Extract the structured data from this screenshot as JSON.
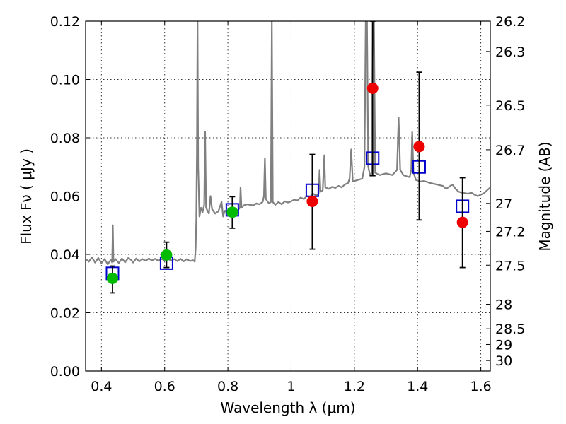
{
  "chart_data": {
    "type": "scatter",
    "xlabel": "Wavelength  λ (μm)",
    "ylabel": "Flux  Fν  ( μJy )",
    "y2label": "Magnitude (AB)",
    "xlim": [
      0.35,
      1.63
    ],
    "ylim": [
      0.0,
      0.12
    ],
    "grid": true,
    "x_ticks": [
      {
        "value": 0.4,
        "label": "0.4"
      },
      {
        "value": 0.6,
        "label": "0.6"
      },
      {
        "value": 0.8,
        "label": "0.8"
      },
      {
        "value": 1.0,
        "label": "1"
      },
      {
        "value": 1.2,
        "label": "1.2"
      },
      {
        "value": 1.4,
        "label": "1.4"
      },
      {
        "value": 1.6,
        "label": "1.6"
      }
    ],
    "y_ticks": [
      {
        "value": 0.0,
        "label": "0.00"
      },
      {
        "value": 0.02,
        "label": "0.02"
      },
      {
        "value": 0.04,
        "label": "0.04"
      },
      {
        "value": 0.06,
        "label": "0.06"
      },
      {
        "value": 0.08,
        "label": "0.08"
      },
      {
        "value": 0.1,
        "label": "0.10"
      },
      {
        "value": 0.12,
        "label": "0.12"
      }
    ],
    "y2_ticks": [
      {
        "flux": 0.12,
        "label": "26.2"
      },
      {
        "flux": 0.1096,
        "label": "26.3"
      },
      {
        "flux": 0.0912,
        "label": "26.5"
      },
      {
        "flux": 0.0759,
        "label": "26.7"
      },
      {
        "flux": 0.0575,
        "label": "27"
      },
      {
        "flux": 0.0479,
        "label": "27.2"
      },
      {
        "flux": 0.0363,
        "label": "27.5"
      },
      {
        "flux": 0.0229,
        "label": "28"
      },
      {
        "flux": 0.0145,
        "label": "28.5"
      },
      {
        "flux": 0.0091,
        "label": "29"
      },
      {
        "flux": 0.0036,
        "label": "30"
      }
    ],
    "colors": {
      "spectrum": "#808080",
      "model": "#0000cc",
      "optical": "#00bb00",
      "nir": "#ee0000",
      "errorbar": "#000000"
    },
    "model_photometry": [
      {
        "x": 0.435,
        "y": 0.0335
      },
      {
        "x": 0.606,
        "y": 0.037
      },
      {
        "x": 0.814,
        "y": 0.0553
      },
      {
        "x": 1.067,
        "y": 0.062
      },
      {
        "x": 1.258,
        "y": 0.073
      },
      {
        "x": 1.405,
        "y": 0.07
      },
      {
        "x": 1.542,
        "y": 0.0565
      }
    ],
    "observed_optical": [
      {
        "x": 0.435,
        "y": 0.0318,
        "yerr": [
          0.0268,
          0.036
        ]
      },
      {
        "x": 0.606,
        "y": 0.0398,
        "yerr": [
          0.0355,
          0.0442
        ]
      },
      {
        "x": 0.814,
        "y": 0.0545,
        "yerr": [
          0.049,
          0.0598
        ]
      }
    ],
    "observed_nir": [
      {
        "x": 1.067,
        "y": 0.0582,
        "yerr": [
          0.0418,
          0.0743
        ]
      },
      {
        "x": 1.258,
        "y": 0.097,
        "yerr": [
          0.067,
          0.12
        ]
      },
      {
        "x": 1.405,
        "y": 0.077,
        "yerr": [
          0.0518,
          0.1025
        ]
      },
      {
        "x": 1.542,
        "y": 0.051,
        "yerr": [
          0.0355,
          0.0663
        ]
      }
    ],
    "model_spectrum": [
      [
        0.35,
        0.0385
      ],
      [
        0.36,
        0.0375
      ],
      [
        0.37,
        0.039
      ],
      [
        0.38,
        0.0372
      ],
      [
        0.39,
        0.0388
      ],
      [
        0.4,
        0.037
      ],
      [
        0.41,
        0.0384
      ],
      [
        0.42,
        0.0366
      ],
      [
        0.43,
        0.0382
      ],
      [
        0.434,
        0.0372
      ],
      [
        0.436,
        0.05
      ],
      [
        0.438,
        0.0375
      ],
      [
        0.445,
        0.0384
      ],
      [
        0.455,
        0.037
      ],
      [
        0.465,
        0.0386
      ],
      [
        0.475,
        0.0373
      ],
      [
        0.485,
        0.0388
      ],
      [
        0.495,
        0.038
      ],
      [
        0.5,
        0.0372
      ],
      [
        0.51,
        0.0386
      ],
      [
        0.52,
        0.0376
      ],
      [
        0.53,
        0.0384
      ],
      [
        0.54,
        0.0378
      ],
      [
        0.55,
        0.0386
      ],
      [
        0.56,
        0.0379
      ],
      [
        0.57,
        0.0385
      ],
      [
        0.58,
        0.0378
      ],
      [
        0.59,
        0.0384
      ],
      [
        0.6,
        0.038
      ],
      [
        0.61,
        0.0386
      ],
      [
        0.62,
        0.0378
      ],
      [
        0.63,
        0.0384
      ],
      [
        0.64,
        0.0377
      ],
      [
        0.65,
        0.0385
      ],
      [
        0.66,
        0.0376
      ],
      [
        0.67,
        0.0384
      ],
      [
        0.68,
        0.0377
      ],
      [
        0.69,
        0.038
      ],
      [
        0.695,
        0.0375
      ],
      [
        0.698,
        0.042
      ],
      [
        0.7,
        0.052
      ],
      [
        0.702,
        0.075
      ],
      [
        0.704,
        0.12
      ],
      [
        0.706,
        0.07
      ],
      [
        0.71,
        0.053
      ],
      [
        0.715,
        0.056
      ],
      [
        0.72,
        0.0545
      ],
      [
        0.725,
        0.057
      ],
      [
        0.728,
        0.082
      ],
      [
        0.731,
        0.056
      ],
      [
        0.74,
        0.054
      ],
      [
        0.745,
        0.06
      ],
      [
        0.75,
        0.0555
      ],
      [
        0.76,
        0.054
      ],
      [
        0.77,
        0.0548
      ],
      [
        0.78,
        0.058
      ],
      [
        0.785,
        0.053
      ],
      [
        0.79,
        0.055
      ],
      [
        0.8,
        0.054
      ],
      [
        0.81,
        0.0548
      ],
      [
        0.82,
        0.0558
      ],
      [
        0.83,
        0.055
      ],
      [
        0.838,
        0.056
      ],
      [
        0.84,
        0.063
      ],
      [
        0.843,
        0.056
      ],
      [
        0.85,
        0.0568
      ],
      [
        0.86,
        0.0572
      ],
      [
        0.87,
        0.057
      ],
      [
        0.88,
        0.0568
      ],
      [
        0.89,
        0.0575
      ],
      [
        0.9,
        0.0572
      ],
      [
        0.91,
        0.058
      ],
      [
        0.914,
        0.06
      ],
      [
        0.917,
        0.073
      ],
      [
        0.92,
        0.059
      ],
      [
        0.925,
        0.0582
      ],
      [
        0.93,
        0.0575
      ],
      [
        0.936,
        0.058
      ],
      [
        0.939,
        0.12
      ],
      [
        0.942,
        0.058
      ],
      [
        0.95,
        0.057
      ],
      [
        0.96,
        0.058
      ],
      [
        0.97,
        0.0572
      ],
      [
        0.98,
        0.0582
      ],
      [
        0.99,
        0.0578
      ],
      [
        1.0,
        0.0582
      ],
      [
        1.01,
        0.0588
      ],
      [
        1.02,
        0.0585
      ],
      [
        1.03,
        0.0595
      ],
      [
        1.04,
        0.059
      ],
      [
        1.05,
        0.06
      ],
      [
        1.06,
        0.0598
      ],
      [
        1.07,
        0.0608
      ],
      [
        1.08,
        0.0602
      ],
      [
        1.087,
        0.061
      ],
      [
        1.09,
        0.069
      ],
      [
        1.093,
        0.0615
      ],
      [
        1.1,
        0.062
      ],
      [
        1.105,
        0.074
      ],
      [
        1.108,
        0.063
      ],
      [
        1.12,
        0.0625
      ],
      [
        1.13,
        0.0632
      ],
      [
        1.14,
        0.0628
      ],
      [
        1.15,
        0.0635
      ],
      [
        1.16,
        0.063
      ],
      [
        1.17,
        0.064
      ],
      [
        1.18,
        0.0645
      ],
      [
        1.185,
        0.066
      ],
      [
        1.19,
        0.076
      ],
      [
        1.195,
        0.065
      ],
      [
        1.21,
        0.0655
      ],
      [
        1.225,
        0.066
      ],
      [
        1.232,
        0.07
      ],
      [
        1.236,
        0.12
      ],
      [
        1.24,
        0.12
      ],
      [
        1.244,
        0.07
      ],
      [
        1.25,
        0.067
      ],
      [
        1.255,
        0.068
      ],
      [
        1.258,
        0.12
      ],
      [
        1.262,
        0.12
      ],
      [
        1.266,
        0.068
      ],
      [
        1.28,
        0.0672
      ],
      [
        1.3,
        0.0678
      ],
      [
        1.32,
        0.0672
      ],
      [
        1.335,
        0.069
      ],
      [
        1.34,
        0.087
      ],
      [
        1.345,
        0.069
      ],
      [
        1.355,
        0.0672
      ],
      [
        1.365,
        0.0668
      ],
      [
        1.375,
        0.0665
      ],
      [
        1.38,
        0.069
      ],
      [
        1.383,
        0.082
      ],
      [
        1.387,
        0.068
      ],
      [
        1.395,
        0.0655
      ],
      [
        1.41,
        0.065
      ],
      [
        1.42,
        0.0652
      ],
      [
        1.44,
        0.0645
      ],
      [
        1.46,
        0.064
      ],
      [
        1.48,
        0.0635
      ],
      [
        1.49,
        0.0625
      ],
      [
        1.5,
        0.0632
      ],
      [
        1.51,
        0.064
      ],
      [
        1.52,
        0.0625
      ],
      [
        1.53,
        0.0615
      ],
      [
        1.54,
        0.0612
      ],
      [
        1.55,
        0.061
      ],
      [
        1.56,
        0.0608
      ],
      [
        1.57,
        0.0612
      ],
      [
        1.58,
        0.0605
      ],
      [
        1.59,
        0.06
      ],
      [
        1.6,
        0.0605
      ],
      [
        1.61,
        0.061
      ],
      [
        1.62,
        0.062
      ],
      [
        1.63,
        0.063
      ]
    ]
  }
}
